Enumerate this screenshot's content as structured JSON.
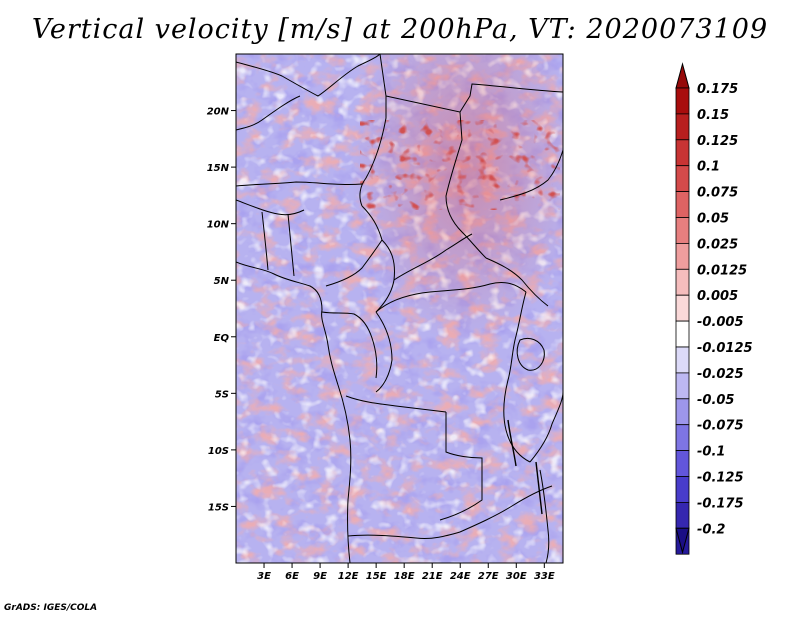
{
  "title": "Vertical velocity [m/s] at 200hPa, VT: 2020073109",
  "credit": "GrADS: IGES/COLA",
  "colors": {
    "neg_deep": "#22118c",
    "neg_mid": "#6a5fe0",
    "neg_light": "#c7c3f5",
    "neutral": "#ffffff",
    "pos_light": "#f6c2c2",
    "pos_mid": "#e06666",
    "pos_deep": "#a11616",
    "border": "#000000"
  },
  "map": {
    "lon_range": [
      0,
      35
    ],
    "lat_range": [
      -20,
      25
    ],
    "lat_ticks": [
      {
        "value": 20,
        "label": "20N"
      },
      {
        "value": 15,
        "label": "15N"
      },
      {
        "value": 10,
        "label": "10N"
      },
      {
        "value": 5,
        "label": "5N"
      },
      {
        "value": 0,
        "label": "EQ"
      },
      {
        "value": -5,
        "label": "5S"
      },
      {
        "value": -10,
        "label": "10S"
      },
      {
        "value": -15,
        "label": "15S"
      }
    ],
    "lon_ticks": [
      {
        "value": 3,
        "label": "3E"
      },
      {
        "value": 6,
        "label": "6E"
      },
      {
        "value": 9,
        "label": "9E"
      },
      {
        "value": 12,
        "label": "12E"
      },
      {
        "value": 15,
        "label": "15E"
      },
      {
        "value": 18,
        "label": "18E"
      },
      {
        "value": 21,
        "label": "21E"
      },
      {
        "value": 24,
        "label": "24E"
      },
      {
        "value": 27,
        "label": "27E"
      },
      {
        "value": 30,
        "label": "30E"
      },
      {
        "value": 33,
        "label": "33E"
      }
    ]
  },
  "colorbar": {
    "levels": [
      {
        "label": "0.175",
        "color": "#a80d0d"
      },
      {
        "label": "0.15",
        "color": "#b81f1f"
      },
      {
        "label": "0.125",
        "color": "#c83434"
      },
      {
        "label": "0.1",
        "color": "#d44a4a"
      },
      {
        "label": "0.075",
        "color": "#de6363"
      },
      {
        "label": "0.05",
        "color": "#e77f7f"
      },
      {
        "label": "0.025",
        "color": "#ef9e9e"
      },
      {
        "label": "0.0125",
        "color": "#f5bdbd"
      },
      {
        "label": "0.005",
        "color": "#fad9d9"
      },
      {
        "label": "-0.005",
        "color": "#ffffff"
      },
      {
        "label": "-0.0125",
        "color": "#dcdaf8"
      },
      {
        "label": "-0.025",
        "color": "#bdb8f2"
      },
      {
        "label": "-0.05",
        "color": "#9d96eb"
      },
      {
        "label": "-0.075",
        "color": "#7e75e4"
      },
      {
        "label": "-0.1",
        "color": "#6256db"
      },
      {
        "label": "-0.125",
        "color": "#483ccb"
      },
      {
        "label": "-0.175",
        "color": "#3527b0"
      },
      {
        "label": "-0.2",
        "color": "#25199a"
      }
    ],
    "top_color": "#960a0a",
    "bottom_color": "#1a0e85"
  }
}
